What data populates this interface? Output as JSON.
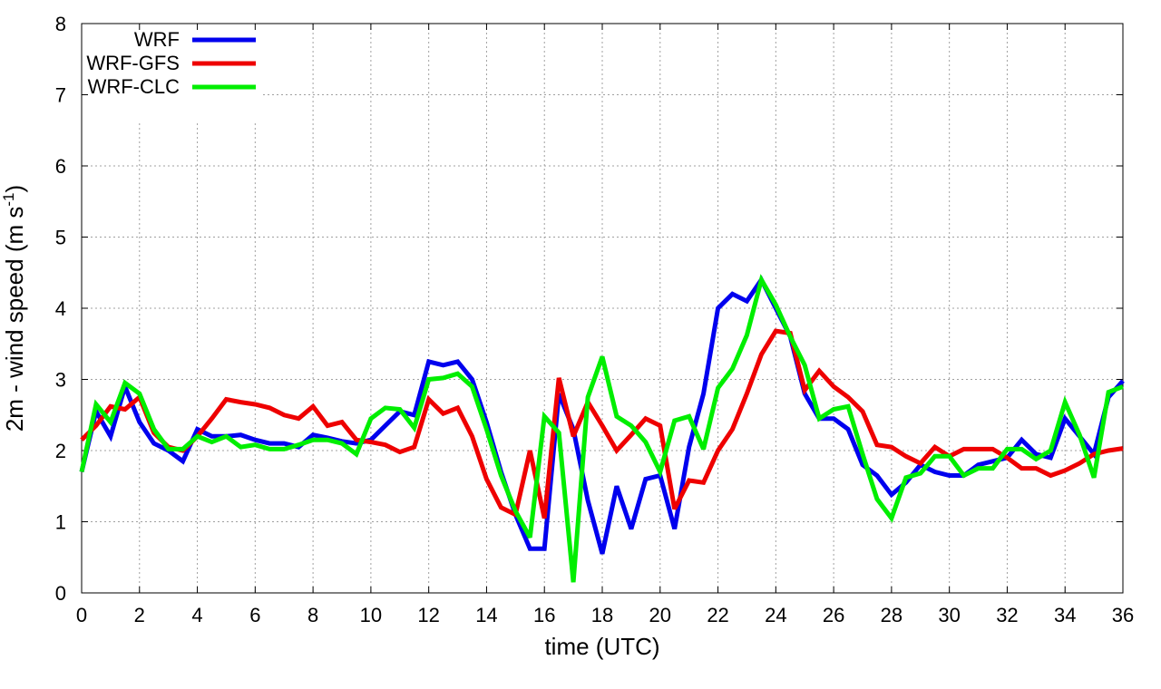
{
  "chart_data": {
    "type": "line",
    "xlabel": "time (UTC)",
    "ylabel_main": "2m - wind speed  (m s",
    "ylabel_sup": "-1",
    "ylabel_end": ")",
    "xlim": [
      0,
      36
    ],
    "ylim": [
      0,
      8
    ],
    "xticks": [
      0,
      2,
      4,
      6,
      8,
      10,
      12,
      14,
      16,
      18,
      20,
      22,
      24,
      26,
      28,
      30,
      32,
      34,
      36
    ],
    "yticks": [
      0,
      1,
      2,
      3,
      4,
      5,
      6,
      7,
      8
    ],
    "grid": true,
    "legend_position": "top-left",
    "series": [
      {
        "name": "WRF",
        "color": "#0000ee",
        "x": [
          0,
          0.5,
          1,
          1.5,
          2,
          2.5,
          3,
          3.5,
          4,
          4.5,
          5,
          5.5,
          6,
          6.5,
          7,
          7.5,
          8,
          8.5,
          9,
          9.5,
          10,
          10.5,
          11,
          11.5,
          12,
          12.5,
          13,
          13.5,
          14,
          14.5,
          15,
          15.5,
          16,
          16.5,
          17,
          17.5,
          18,
          18.5,
          19,
          19.5,
          20,
          20.5,
          21,
          21.5,
          22,
          22.5,
          23,
          23.5,
          24,
          24.5,
          25,
          25.5,
          26,
          26.5,
          27,
          27.5,
          28,
          28.5,
          29,
          29.5,
          30,
          30.5,
          31,
          31.5,
          32,
          32.5,
          33,
          33.5,
          34,
          34.5,
          35,
          35.5,
          36
        ],
        "values": [
          1.7,
          2.55,
          2.2,
          2.9,
          2.4,
          2.1,
          2.0,
          1.85,
          2.3,
          2.2,
          2.2,
          2.22,
          2.15,
          2.1,
          2.1,
          2.05,
          2.22,
          2.18,
          2.13,
          2.1,
          2.15,
          2.35,
          2.55,
          2.5,
          3.25,
          3.2,
          3.25,
          3.0,
          2.4,
          1.7,
          1.1,
          0.62,
          0.62,
          2.8,
          2.3,
          1.3,
          0.55,
          1.5,
          0.9,
          1.6,
          1.65,
          0.9,
          2.05,
          2.8,
          4.0,
          4.2,
          4.1,
          4.4,
          4.0,
          3.6,
          2.8,
          2.45,
          2.45,
          2.3,
          1.8,
          1.65,
          1.38,
          1.55,
          1.8,
          1.7,
          1.65,
          1.65,
          1.8,
          1.85,
          1.9,
          2.15,
          1.95,
          1.9,
          2.45,
          2.2,
          1.95,
          2.75,
          2.98
        ]
      },
      {
        "name": "WRF-GFS",
        "color": "#ee0000",
        "x": [
          0,
          0.5,
          1,
          1.5,
          2,
          2.5,
          3,
          3.5,
          4,
          4.5,
          5,
          5.5,
          6,
          6.5,
          7,
          7.5,
          8,
          8.5,
          9,
          9.5,
          10,
          10.5,
          11,
          11.5,
          12,
          12.5,
          13,
          13.5,
          14,
          14.5,
          15,
          15.5,
          16,
          16.5,
          17,
          17.5,
          18,
          18.5,
          19,
          19.5,
          20,
          20.5,
          21,
          21.5,
          22,
          22.5,
          23,
          23.5,
          24,
          24.5,
          25,
          25.5,
          26,
          26.5,
          27,
          27.5,
          28,
          28.5,
          29,
          29.5,
          30,
          30.5,
          31,
          31.5,
          32,
          32.5,
          33,
          33.5,
          34,
          34.5,
          35,
          35.5,
          36
        ],
        "values": [
          2.15,
          2.35,
          2.62,
          2.58,
          2.75,
          2.25,
          2.05,
          2.0,
          2.2,
          2.45,
          2.72,
          2.68,
          2.65,
          2.6,
          2.5,
          2.45,
          2.62,
          2.35,
          2.4,
          2.15,
          2.12,
          2.08,
          1.98,
          2.05,
          2.72,
          2.52,
          2.6,
          2.2,
          1.6,
          1.2,
          1.1,
          2.0,
          1.05,
          3.02,
          2.2,
          2.68,
          2.35,
          2.0,
          2.22,
          2.45,
          2.35,
          1.18,
          1.58,
          1.55,
          2.0,
          2.3,
          2.8,
          3.35,
          3.68,
          3.65,
          2.85,
          3.12,
          2.9,
          2.75,
          2.55,
          2.08,
          2.05,
          1.92,
          1.82,
          2.05,
          1.92,
          2.02,
          2.02,
          2.02,
          1.9,
          1.75,
          1.75,
          1.65,
          1.72,
          1.82,
          1.95,
          2.0,
          2.03
        ]
      },
      {
        "name": "WRF-CLC",
        "color": "#00ee00",
        "x": [
          0,
          0.5,
          1,
          1.5,
          2,
          2.5,
          3,
          3.5,
          4,
          4.5,
          5,
          5.5,
          6,
          6.5,
          7,
          7.5,
          8,
          8.5,
          9,
          9.5,
          10,
          10.5,
          11,
          11.5,
          12,
          12.5,
          13,
          13.5,
          14,
          14.5,
          15,
          15.5,
          16,
          16.5,
          17,
          17.5,
          18,
          18.5,
          19,
          19.5,
          20,
          20.5,
          21,
          21.5,
          22,
          22.5,
          23,
          23.5,
          24,
          24.5,
          25,
          25.5,
          26,
          26.5,
          27,
          27.5,
          28,
          28.5,
          29,
          29.5,
          30,
          30.5,
          31,
          31.5,
          32,
          32.5,
          33,
          33.5,
          34,
          34.5,
          35,
          35.5,
          36
        ],
        "values": [
          1.7,
          2.65,
          2.4,
          2.95,
          2.8,
          2.3,
          2.02,
          2.02,
          2.2,
          2.12,
          2.2,
          2.05,
          2.08,
          2.02,
          2.02,
          2.08,
          2.15,
          2.15,
          2.1,
          1.95,
          2.45,
          2.6,
          2.58,
          2.32,
          3.0,
          3.02,
          3.08,
          2.9,
          2.3,
          1.65,
          1.15,
          0.78,
          2.48,
          2.25,
          0.15,
          2.75,
          3.32,
          2.48,
          2.35,
          2.12,
          1.7,
          2.42,
          2.48,
          2.02,
          2.88,
          3.15,
          3.62,
          4.4,
          4.05,
          3.6,
          3.2,
          2.45,
          2.58,
          2.62,
          1.95,
          1.32,
          1.05,
          1.62,
          1.68,
          1.92,
          1.92,
          1.65,
          1.75,
          1.75,
          2.02,
          2.02,
          1.88,
          2.0,
          2.68,
          2.22,
          1.62,
          2.82,
          2.9
        ]
      }
    ]
  }
}
